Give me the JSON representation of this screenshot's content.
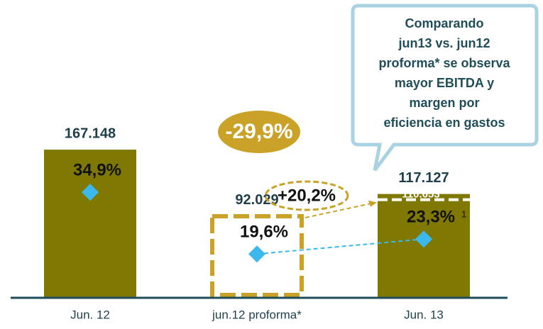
{
  "chart_data": {
    "type": "bar",
    "categories": [
      "Jun. 12",
      "jun.12 proforma*",
      "Jun. 13"
    ],
    "values": [
      167148,
      92029,
      117127
    ],
    "value_labels": [
      "167.148",
      "92.029",
      "117.127"
    ],
    "styles": [
      "solid",
      "dashed",
      "solid"
    ],
    "color": "#7f7904",
    "outline_color": "#c9a227",
    "margins": {
      "values": [
        34.9,
        19.6,
        23.3
      ],
      "value_labels": [
        "34,9%",
        "19,6%",
        "23,3%"
      ],
      "color": "#3cb9ec"
    },
    "footnote": "1",
    "reference": {
      "value": 110653,
      "label": "110.653"
    },
    "change": "-29,9%",
    "increase": "+20,2%",
    "callout": [
      "Comparando",
      "jun13 vs. jun12",
      "proforma* se observa",
      "mayor EBITDA y",
      "margen por",
      "eficiencia en gastos"
    ]
  }
}
